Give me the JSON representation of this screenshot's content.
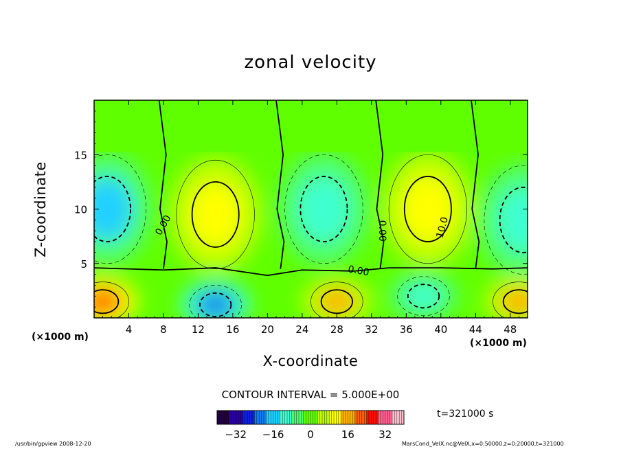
{
  "chart_data": {
    "type": "heatmap",
    "title": "zonal velocity",
    "xlabel": "X-coordinate",
    "ylabel": "Z-coordinate",
    "x_unit": "(×1000 m)",
    "xlim": [
      0,
      50
    ],
    "ylim": [
      0,
      20
    ],
    "x_ticks": [
      4,
      8,
      12,
      16,
      20,
      24,
      28,
      32,
      36,
      40,
      44,
      48
    ],
    "y_ticks": [
      5,
      10,
      15
    ],
    "contour_interval_text": "CONTOUR INTERVAL = 5.000E+00",
    "contour_labels": [
      {
        "text": "0.00",
        "x": 8.0,
        "z": 8.5,
        "angle": -60
      },
      {
        "text": "0.00",
        "x": 30.5,
        "z": 4.3,
        "angle": 10
      },
      {
        "text": "0.00",
        "x": 33.2,
        "z": 8.0,
        "angle": 90
      },
      {
        "text": "10.0",
        "x": 40.2,
        "z": 8.3,
        "angle": -75
      }
    ],
    "colorbar": {
      "range": [
        -40,
        40
      ],
      "ticks": [
        -32,
        -16,
        0,
        16,
        32
      ],
      "colors": [
        "#240040",
        "#2a00a0",
        "#1020e0",
        "#1080f0",
        "#20d0ff",
        "#40ffd0",
        "#50ff70",
        "#60ff00",
        "#c0ff00",
        "#ffff00",
        "#ffb000",
        "#ff6000",
        "#ff1000",
        "#ff6090",
        "#ffc0d0"
      ]
    },
    "field_features": [
      {
        "type": "negative",
        "x": 1.5,
        "z": 10,
        "value": -15
      },
      {
        "type": "positive",
        "x": 14.0,
        "z": 9.5,
        "value": 13
      },
      {
        "type": "negative",
        "x": 26.5,
        "z": 10,
        "value": -12
      },
      {
        "type": "positive",
        "x": 38.5,
        "z": 10,
        "value": 13
      },
      {
        "type": "negative",
        "x": 49.5,
        "z": 9,
        "value": -12
      },
      {
        "type": "positive",
        "x": 1.0,
        "z": 1.5,
        "value": 20
      },
      {
        "type": "negative",
        "x": 14.0,
        "z": 1.2,
        "value": -20
      },
      {
        "type": "positive",
        "x": 28.0,
        "z": 1.5,
        "value": 15
      },
      {
        "type": "negative",
        "x": 38.0,
        "z": 2.0,
        "value": -10
      },
      {
        "type": "positive",
        "x": 49.0,
        "z": 1.5,
        "value": 15
      }
    ],
    "time_text": "t=321000 s"
  },
  "footer": {
    "left": "/usr/bin/gpview   2008-12-20",
    "right": "MarsCond_VelX.nc@VelX,x=0:50000,z=0:20000,t=321000"
  }
}
